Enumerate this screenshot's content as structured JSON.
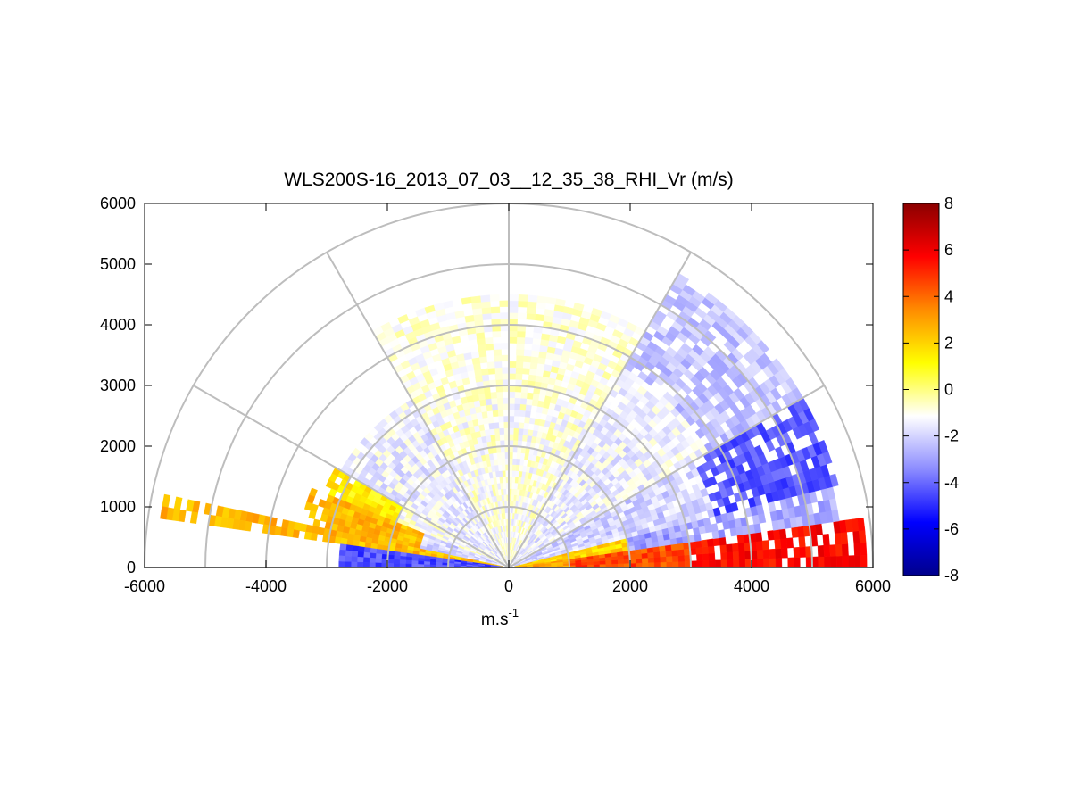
{
  "chart_data": {
    "type": "heatmap",
    "subtype": "polar-rhi-sector",
    "title": "WLS200S-16_2013_07_03__12_35_38_RHI_Vr (m/s)",
    "xlabel_base": "m.s",
    "xlabel_sup": "-1",
    "ylabel": "",
    "xlim": [
      -6000,
      6000
    ],
    "ylim": [
      0,
      6000
    ],
    "xticks": [
      "-6000",
      "-4000",
      "-2000",
      "0",
      "2000",
      "4000",
      "6000"
    ],
    "yticks": [
      "0",
      "1000",
      "2000",
      "3000",
      "4000",
      "5000",
      "6000"
    ],
    "range_rings": [
      1000,
      2000,
      3000,
      4000,
      5000,
      6000
    ],
    "radial_lines_deg": [
      0,
      30,
      60,
      90,
      120,
      150,
      180
    ],
    "grid": true,
    "colorbar": {
      "min": -8,
      "max": 8,
      "ticks": [
        "-8",
        "-6",
        "-4",
        "-2",
        "0",
        "2",
        "4",
        "6",
        "8"
      ],
      "colors": [
        "#00008b",
        "#0000ff",
        "#8c8cff",
        "#ffffff",
        "#ffff00",
        "#ff8c00",
        "#ff0000",
        "#8b0000"
      ]
    },
    "velocity_field": [
      {
        "elev_from": 0,
        "elev_to": 8,
        "range_from": 0,
        "range_to": 1000,
        "vr": 3
      },
      {
        "elev_from": 0,
        "elev_to": 8,
        "range_from": 1000,
        "range_to": 3000,
        "vr": 4.5
      },
      {
        "elev_from": 0,
        "elev_to": 8,
        "range_from": 3000,
        "range_to": 5900,
        "vr": 5.5
      },
      {
        "elev_from": 8,
        "elev_to": 14,
        "range_from": 0,
        "range_to": 2000,
        "vr": 2
      },
      {
        "elev_from": 8,
        "elev_to": 14,
        "range_from": 2000,
        "range_to": 5500,
        "vr": -3
      },
      {
        "elev_from": 14,
        "elev_to": 30,
        "range_from": 0,
        "range_to": 3500,
        "vr": -2
      },
      {
        "elev_from": 14,
        "elev_to": 30,
        "range_from": 3500,
        "range_to": 5600,
        "vr": -4.5
      },
      {
        "elev_from": 30,
        "elev_to": 60,
        "range_from": 0,
        "range_to": 3800,
        "vr": -1.5
      },
      {
        "elev_from": 30,
        "elev_to": 60,
        "range_from": 3800,
        "range_to": 5600,
        "vr": -2.5
      },
      {
        "elev_from": 60,
        "elev_to": 120,
        "range_from": 0,
        "range_to": 4500,
        "vr": -1
      },
      {
        "elev_from": 120,
        "elev_to": 150,
        "range_from": 0,
        "range_to": 3200,
        "vr": -1.5
      },
      {
        "elev_from": 150,
        "elev_to": 158,
        "range_from": 0,
        "range_to": 2000,
        "vr": -1
      },
      {
        "elev_from": 150,
        "elev_to": 158,
        "range_from": 2000,
        "range_to": 3300,
        "vr": 1.5
      },
      {
        "elev_from": 158,
        "elev_to": 168,
        "range_from": 0,
        "range_to": 1500,
        "vr": -2
      },
      {
        "elev_from": 158,
        "elev_to": 168,
        "range_from": 1500,
        "range_to": 3500,
        "vr": 2.5
      },
      {
        "elev_from": 168,
        "elev_to": 172,
        "range_from": 0,
        "range_to": 5800,
        "vr": 2.5
      },
      {
        "elev_from": 172,
        "elev_to": 180,
        "range_from": 0,
        "range_to": 2800,
        "vr": -4.5
      }
    ]
  }
}
